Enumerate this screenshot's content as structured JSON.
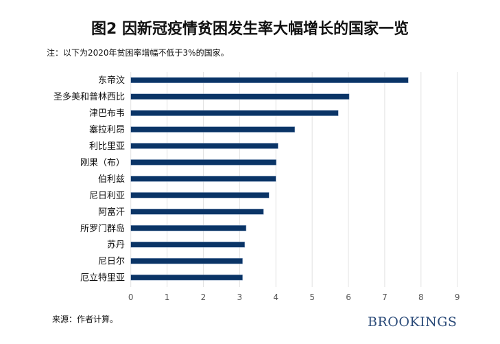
{
  "chart_data": {
    "type": "bar",
    "orientation": "horizontal",
    "title": "图2 因新冠疫情贫困发生率大幅增长的国家一览",
    "subtitle": "注：以下为2020年贫困率增幅不低于3%的国家。",
    "categories": [
      "东帝汶",
      "圣多美和普林西比",
      "津巴布韦",
      "塞拉利昂",
      "利比里亚",
      "刚果（布）",
      "伯利兹",
      "尼日利亚",
      "阿富汗",
      "所罗门群岛",
      "苏丹",
      "尼日尔",
      "厄立特里亚"
    ],
    "values": [
      7.65,
      6.02,
      5.72,
      4.52,
      4.06,
      4.01,
      4.0,
      3.81,
      3.66,
      3.18,
      3.14,
      3.08,
      3.08
    ],
    "xlim": [
      0,
      9
    ],
    "xticks": [
      "0",
      "1",
      "2",
      "3",
      "4",
      "5",
      "6",
      "7",
      "8",
      "9"
    ],
    "grid": true,
    "bar_color": "#0a3466",
    "xlabel": "",
    "ylabel": ""
  },
  "footer": {
    "source": "来源：作者计算。",
    "brand": "BROOKINGS"
  }
}
